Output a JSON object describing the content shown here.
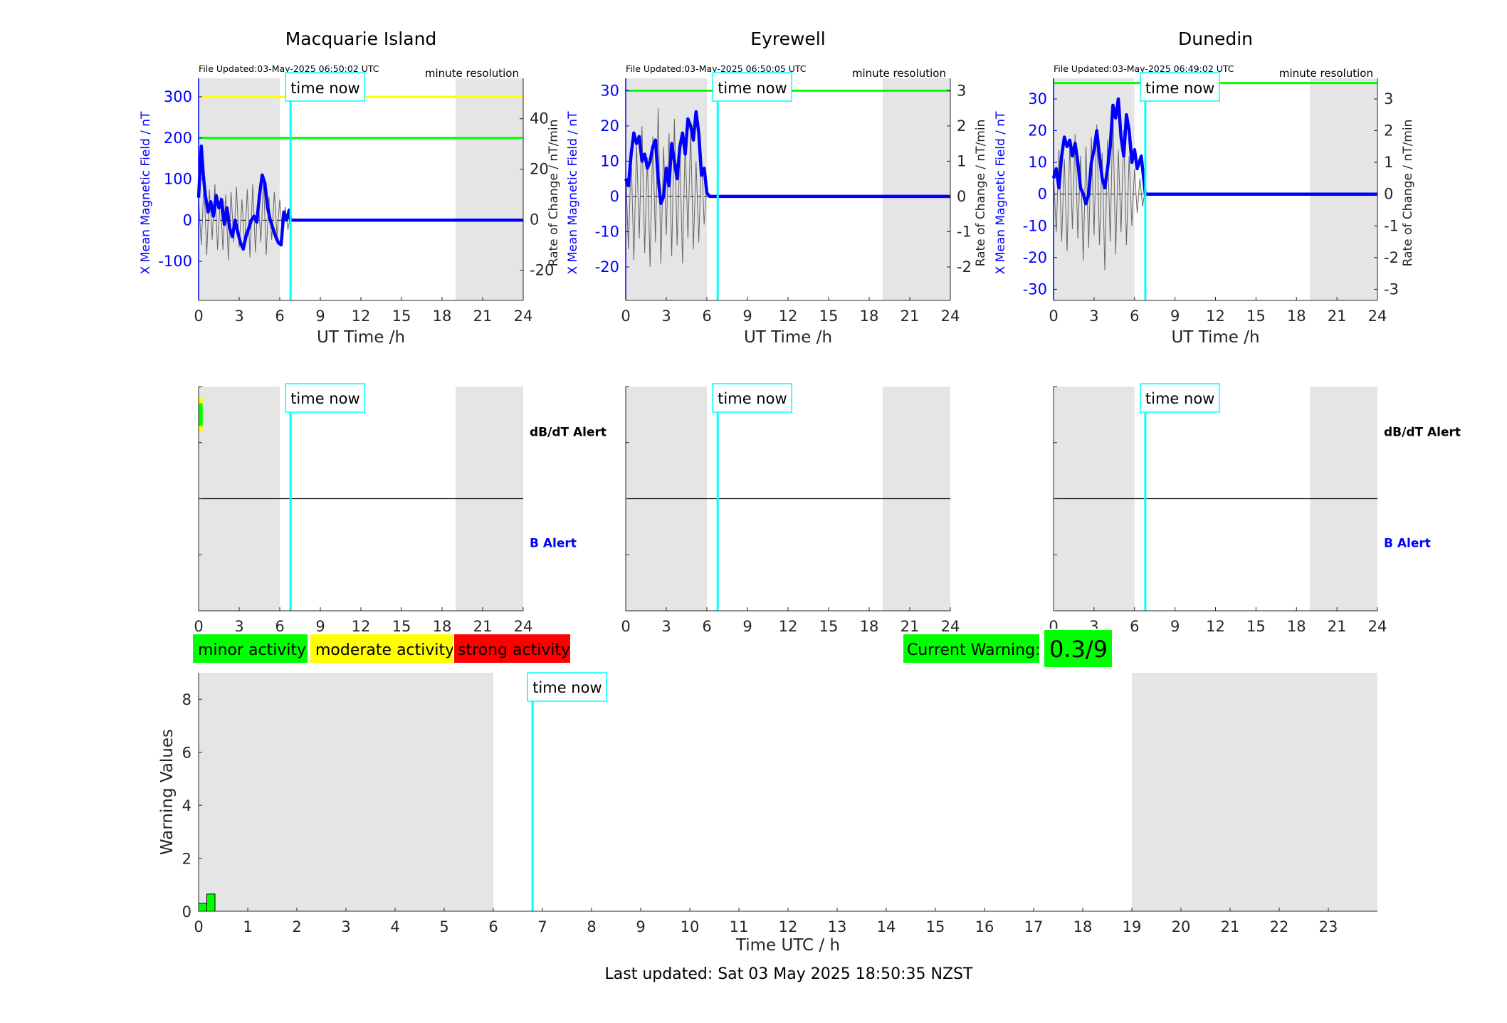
{
  "chart_data": [
    {
      "type": "line",
      "panel": "magnetometer",
      "title": "Macquarie Island",
      "file_updated": "File Updated:03-May-2025 06:50:02 UTC",
      "resolution": "minute resolution",
      "xlabel": "UT Time /h",
      "ylabel_left": "X Mean Magnetic Field / nT",
      "ylabel_right": "Rate of Change / nT/min",
      "xlim": [
        0,
        24
      ],
      "ylim_left": [
        -195,
        345
      ],
      "ylim_right": [
        -32,
        56
      ],
      "x_ticks": [
        0,
        3,
        6,
        9,
        12,
        15,
        18,
        21,
        24
      ],
      "yticks_left": [
        -100,
        0,
        100,
        200,
        300
      ],
      "yticks_right": [
        -20,
        0,
        20,
        40
      ],
      "night_shading": [
        [
          0,
          6
        ],
        [
          19,
          24
        ]
      ],
      "time_now": 6.8,
      "time_now_label": "time now",
      "threshold_lines": [
        {
          "level": 300,
          "color": "#ffff00"
        },
        {
          "level": 200,
          "color": "#00ff00"
        }
      ],
      "series": [
        {
          "role": "x-mean-field",
          "color": "#0000ff",
          "x": [
            0,
            0.1,
            0.2,
            0.35,
            0.5,
            0.7,
            0.9,
            1.1,
            1.3,
            1.5,
            1.7,
            1.9,
            2.1,
            2.3,
            2.5,
            2.7,
            2.9,
            3.1,
            3.3,
            3.5,
            3.7,
            3.9,
            4.1,
            4.3,
            4.5,
            4.7,
            4.9,
            5.1,
            5.3,
            5.5,
            5.7,
            5.9,
            6.1,
            6.3,
            6.5,
            6.7,
            6.8,
            24
          ],
          "y": [
            55,
            120,
            180,
            110,
            60,
            20,
            45,
            10,
            60,
            30,
            50,
            -10,
            30,
            -20,
            -40,
            0,
            -30,
            -55,
            -70,
            -40,
            -20,
            0,
            10,
            -5,
            60,
            110,
            90,
            30,
            0,
            -20,
            -40,
            -55,
            -60,
            20,
            0,
            25,
            0,
            0
          ]
        },
        {
          "role": "rate-of-change",
          "color": "#666666",
          "x": [
            0,
            0.2,
            0.4,
            0.6,
            0.8,
            1.0,
            1.2,
            1.4,
            1.6,
            1.8,
            2.0,
            2.2,
            2.4,
            2.6,
            2.8,
            3.0,
            3.2,
            3.4,
            3.6,
            3.8,
            4.0,
            4.2,
            4.4,
            4.6,
            4.8,
            5.0,
            5.2,
            5.4,
            5.6,
            5.8,
            6.0,
            6.2,
            6.4,
            6.6,
            6.8
          ],
          "y": [
            8,
            -10,
            15,
            -14,
            12,
            -8,
            14,
            -12,
            9,
            -12,
            10,
            -16,
            11,
            -9,
            13,
            -11,
            8,
            -10,
            12,
            -15,
            14,
            -13,
            10,
            -9,
            16,
            -14,
            9,
            -8,
            11,
            -7,
            8,
            -6,
            5,
            -4,
            2
          ]
        }
      ]
    },
    {
      "type": "line",
      "panel": "magnetometer",
      "title": "Eyrewell",
      "file_updated": "File Updated:03-May-2025 06:50:05 UTC",
      "resolution": "minute resolution",
      "xlabel": "UT Time /h",
      "ylabel_left": "X Mean Magnetic Field / nT",
      "ylabel_right": "Rate of Change / nT/min",
      "xlim": [
        0,
        24
      ],
      "ylim_left": [
        -29.5,
        33.5
      ],
      "ylim_right": [
        -2.95,
        3.35
      ],
      "x_ticks": [
        0,
        3,
        6,
        9,
        12,
        15,
        18,
        21,
        24
      ],
      "yticks_left": [
        -20,
        -10,
        0,
        10,
        20,
        30
      ],
      "yticks_right": [
        -2,
        -1,
        0,
        1,
        2,
        3
      ],
      "night_shading": [
        [
          0,
          6
        ],
        [
          19,
          24
        ]
      ],
      "time_now": 6.8,
      "time_now_label": "time now",
      "threshold_lines": [
        {
          "level": 30,
          "color": "#00ff00"
        }
      ],
      "series": [
        {
          "role": "x-mean-field",
          "color": "#0000ff",
          "x": [
            0,
            0.2,
            0.4,
            0.6,
            0.8,
            1.0,
            1.2,
            1.4,
            1.6,
            1.8,
            2.0,
            2.2,
            2.4,
            2.6,
            2.8,
            3.0,
            3.2,
            3.4,
            3.6,
            3.8,
            4.0,
            4.2,
            4.4,
            4.6,
            4.8,
            5.0,
            5.2,
            5.4,
            5.6,
            5.8,
            6.0,
            6.2,
            24
          ],
          "y": [
            5,
            3,
            12,
            18,
            15,
            17,
            10,
            12,
            8,
            10,
            14,
            16,
            5,
            -2,
            0,
            8,
            3,
            15,
            10,
            5,
            14,
            18,
            12,
            22,
            20,
            16,
            24,
            18,
            6,
            8,
            1,
            0,
            0
          ]
        },
        {
          "role": "rate-of-change",
          "color": "#666666",
          "x": [
            0,
            0.2,
            0.4,
            0.6,
            0.8,
            1.0,
            1.2,
            1.4,
            1.6,
            1.8,
            2.0,
            2.2,
            2.4,
            2.6,
            2.8,
            3.0,
            3.2,
            3.4,
            3.6,
            3.8,
            4.0,
            4.2,
            4.4,
            4.6,
            4.8,
            5.0,
            5.2,
            5.4,
            5.6,
            5.8,
            6.0
          ],
          "y": [
            0.8,
            -1.5,
            1.2,
            -1.8,
            1.5,
            -1.2,
            2.0,
            -1.6,
            1.1,
            -2.0,
            1.7,
            -1.3,
            2.5,
            -1.9,
            1.4,
            -1.1,
            1.8,
            -1.7,
            2.2,
            -1.4,
            1.3,
            -1.9,
            1.6,
            -1.2,
            1.9,
            -1.5,
            1.0,
            -1.3,
            1.2,
            -0.8,
            0.3
          ]
        }
      ]
    },
    {
      "type": "line",
      "panel": "magnetometer",
      "title": "Dunedin",
      "file_updated": "File Updated:03-May-2025 06:49:02 UTC",
      "resolution": "minute resolution",
      "xlabel": "UT Time /h",
      "ylabel_left": "X Mean Magnetic Field / nT",
      "ylabel_right": "Rate of Change / nT/min",
      "xlim": [
        0,
        24
      ],
      "ylim_left": [
        -33.5,
        36.5
      ],
      "ylim_right": [
        -3.35,
        3.65
      ],
      "x_ticks": [
        0,
        3,
        6,
        9,
        12,
        15,
        18,
        21,
        24
      ],
      "yticks_left": [
        -30,
        -20,
        -10,
        0,
        10,
        20,
        30
      ],
      "yticks_right": [
        -3,
        -2,
        -1,
        0,
        1,
        2,
        3
      ],
      "night_shading": [
        [
          0,
          6
        ],
        [
          19,
          24
        ]
      ],
      "time_now": 6.8,
      "time_now_label": "time now",
      "threshold_lines": [
        {
          "level": 35,
          "color": "#00ff00"
        }
      ],
      "series": [
        {
          "role": "x-mean-field",
          "color": "#0000ff",
          "x": [
            0,
            0.2,
            0.4,
            0.6,
            0.8,
            1.0,
            1.2,
            1.4,
            1.6,
            1.8,
            2.0,
            2.2,
            2.4,
            2.6,
            2.8,
            3.0,
            3.2,
            3.4,
            3.6,
            3.8,
            4.0,
            4.2,
            4.4,
            4.6,
            4.8,
            5.0,
            5.2,
            5.4,
            5.6,
            5.8,
            6.0,
            6.2,
            6.5,
            6.8,
            24
          ],
          "y": [
            5,
            8,
            2,
            12,
            18,
            15,
            17,
            12,
            16,
            10,
            2,
            0,
            -3,
            0,
            10,
            14,
            20,
            12,
            5,
            2,
            8,
            15,
            28,
            24,
            30,
            18,
            12,
            25,
            20,
            10,
            14,
            8,
            12,
            0,
            0
          ]
        },
        {
          "role": "rate-of-change",
          "color": "#666666",
          "x": [
            0,
            0.2,
            0.4,
            0.6,
            0.8,
            1.0,
            1.2,
            1.4,
            1.6,
            1.8,
            2.0,
            2.2,
            2.4,
            2.6,
            2.8,
            3.0,
            3.2,
            3.4,
            3.6,
            3.8,
            4.0,
            4.2,
            4.4,
            4.6,
            4.8,
            5.0,
            5.2,
            5.4,
            5.6,
            5.8,
            6.0,
            6.2,
            6.4,
            6.6,
            6.8
          ],
          "y": [
            0.6,
            -1.2,
            1.4,
            -1.5,
            1.1,
            -1.8,
            1.6,
            -1.1,
            1.9,
            -1.4,
            1.2,
            -2.1,
            1.5,
            -1.7,
            1.8,
            -1.3,
            2.2,
            -1.6,
            1.3,
            -2.4,
            1.7,
            -1.5,
            2.6,
            -1.9,
            1.4,
            -1.2,
            2.0,
            -1.6,
            1.2,
            -1.0,
            0.8,
            -0.6,
            0.5,
            -0.4,
            0.2
          ]
        }
      ]
    },
    {
      "type": "bar",
      "panel": "alert",
      "station": "Macquarie Island",
      "xlim": [
        0,
        24
      ],
      "x_ticks": [
        0,
        3,
        6,
        9,
        12,
        15,
        18,
        21,
        24
      ],
      "night_shading": [
        [
          0,
          6
        ],
        [
          19,
          24
        ]
      ],
      "time_now": 6.8,
      "time_now_label": "time now",
      "dbdt_label": "dB/dT Alert",
      "b_label": "B Alert",
      "dbdt_alerts": [
        {
          "x": [
            0,
            0.3
          ],
          "fill": [
            0.1,
            0.4
          ],
          "color": "#ffff00"
        },
        {
          "x": [
            0,
            0.3
          ],
          "fill": [
            0.15,
            0.35
          ],
          "color": "#00ff00"
        }
      ],
      "b_alerts": []
    },
    {
      "type": "bar",
      "panel": "alert",
      "station": "Eyrewell",
      "xlim": [
        0,
        24
      ],
      "x_ticks": [
        0,
        3,
        6,
        9,
        12,
        15,
        18,
        21,
        24
      ],
      "night_shading": [
        [
          0,
          6
        ],
        [
          19,
          24
        ]
      ],
      "time_now": 6.8,
      "time_now_label": "time now",
      "dbdt_label": "",
      "b_label": "",
      "dbdt_alerts": [],
      "b_alerts": []
    },
    {
      "type": "bar",
      "panel": "alert",
      "station": "Dunedin",
      "xlim": [
        0,
        24
      ],
      "x_ticks": [
        0,
        3,
        6,
        9,
        12,
        15,
        18,
        21,
        24
      ],
      "night_shading": [
        [
          0,
          6
        ],
        [
          19,
          24
        ]
      ],
      "time_now": 6.8,
      "time_now_label": "time now",
      "dbdt_label": "dB/dT Alert",
      "b_label": "B Alert",
      "dbdt_alerts": [],
      "b_alerts": []
    },
    {
      "type": "bar",
      "panel": "warning",
      "xlabel": "Time UTC / h",
      "ylabel": "Warning Values",
      "xlim": [
        0,
        24
      ],
      "ylim": [
        0,
        9
      ],
      "x_ticks": [
        0,
        1,
        2,
        3,
        4,
        5,
        6,
        7,
        8,
        9,
        10,
        11,
        12,
        13,
        14,
        15,
        16,
        17,
        18,
        19,
        20,
        21,
        22,
        23
      ],
      "y_ticks": [
        0,
        2,
        4,
        6,
        8
      ],
      "night_shading": [
        [
          0,
          6
        ],
        [
          19,
          24
        ]
      ],
      "time_now": 6.8,
      "time_now_label": "time now",
      "bar_width": 0.16667,
      "bars": [
        {
          "x": 0,
          "value": 0.3
        },
        {
          "x": 0.16667,
          "value": 0.65
        }
      ],
      "bar_color": "#00ff00"
    }
  ],
  "legend": {
    "minor": "minor activity",
    "moderate": "moderate activity",
    "strong": "strong activity",
    "colors": {
      "minor": "#00ff00",
      "moderate": "#ffff00",
      "strong": "#ff0000"
    }
  },
  "current_warning": {
    "label": "Current Warning:",
    "value": "0.3/9",
    "color": "#00ff00"
  },
  "footer": "Last updated: Sat 03 May 2025 18:50:35 NZST"
}
